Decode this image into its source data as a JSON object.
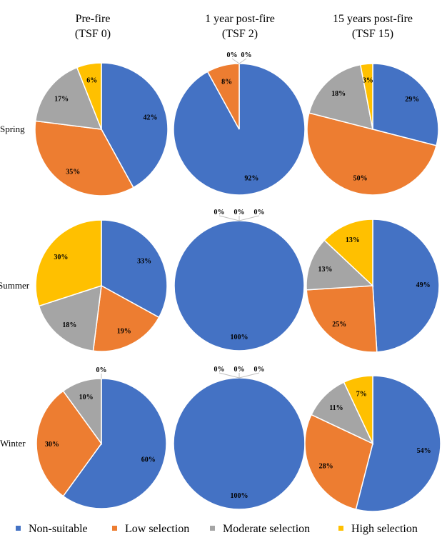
{
  "chart_data": {
    "type": "pie",
    "columns": [
      {
        "line1": "Pre-fire",
        "line2": "(TSF 0)"
      },
      {
        "line1": "1 year post-fire",
        "line2": "(TSF 2)"
      },
      {
        "line1": "15 years post-fire",
        "line2": "(TSF 15)"
      }
    ],
    "rows": [
      "Spring",
      "Summer",
      "Winter"
    ],
    "categories": [
      "Non-suitable",
      "Low selection",
      "Moderate selection",
      "High selection"
    ],
    "colors": [
      "#4472C4",
      "#ED7D31",
      "#A5A5A5",
      "#FFC000"
    ],
    "values": [
      [
        [
          42,
          35,
          17,
          6
        ],
        [
          92,
          8,
          0,
          0
        ],
        [
          29,
          50,
          18,
          3
        ]
      ],
      [
        [
          33,
          19,
          18,
          30
        ],
        [
          100,
          0,
          0,
          0
        ],
        [
          49,
          25,
          13,
          13
        ]
      ],
      [
        [
          60,
          30,
          10,
          0
        ],
        [
          100,
          0,
          0,
          0
        ],
        [
          54,
          28,
          11,
          7
        ]
      ]
    ],
    "value_suffix": "%",
    "legend_position": "bottom"
  }
}
